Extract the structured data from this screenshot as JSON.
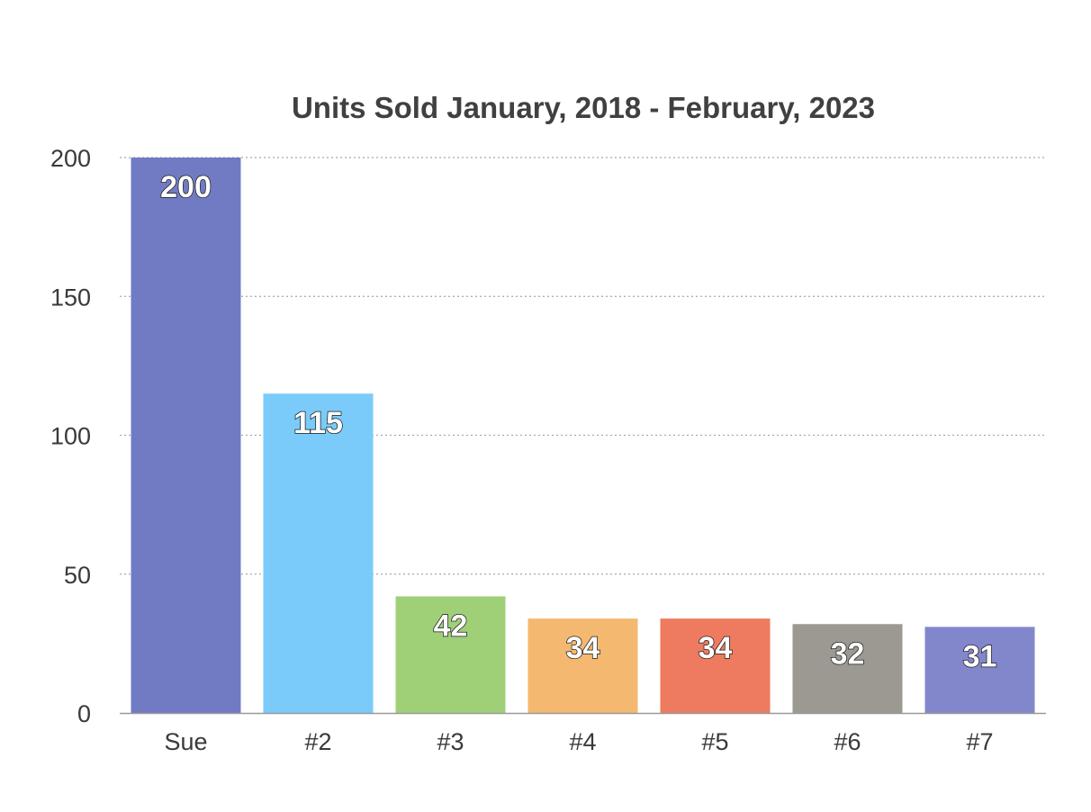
{
  "chart_data": {
    "type": "bar",
    "title": "Units Sold January, 2018 - February, 2023",
    "xlabel": "",
    "ylabel": "",
    "categories": [
      "Sue",
      "#2",
      "#3",
      "#4",
      "#5",
      "#6",
      "#7"
    ],
    "values": [
      200,
      115,
      42,
      34,
      34,
      32,
      31
    ],
    "data_labels": [
      "200",
      "115",
      "42",
      "34",
      "34",
      "32",
      "31"
    ],
    "colors": [
      "#717bc4",
      "#7acbfa",
      "#9fd078",
      "#f4b871",
      "#ee7b5f",
      "#9c9892",
      "#8287cc"
    ],
    "ylim": [
      0,
      200
    ],
    "yticks": [
      0,
      50,
      100,
      150,
      200
    ],
    "ytick_labels": [
      "0",
      "50",
      "100",
      "150",
      "200"
    ],
    "grid": true,
    "legend": "none"
  }
}
